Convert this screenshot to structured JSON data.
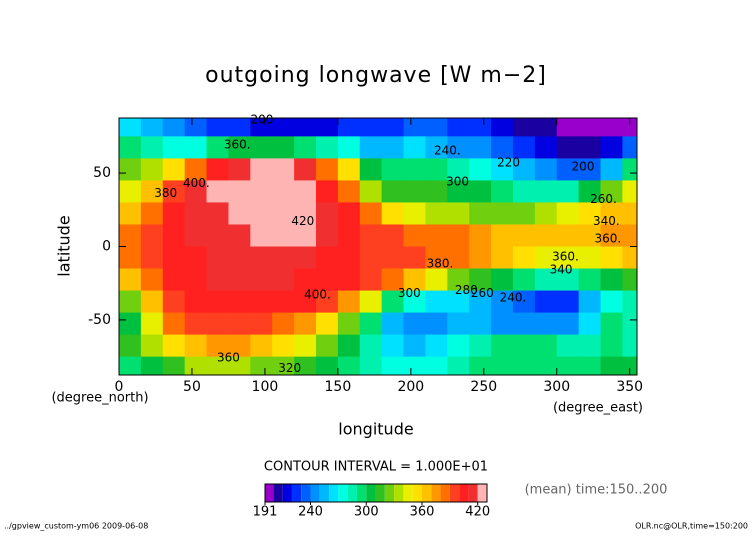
{
  "chart_data": {
    "type": "contour",
    "title": "outgoing longwave [W m−2]",
    "xlabel": "longitude",
    "ylabel": "latitude",
    "xunits": "(degree_east)",
    "yunits": "(degree_north)",
    "xlim": [
      0,
      355
    ],
    "ylim": [
      -87.5,
      87.5
    ],
    "xticks": [
      0,
      50,
      100,
      150,
      200,
      250,
      300,
      350
    ],
    "yticks": [
      -50,
      0,
      50
    ],
    "x": [
      7.5,
      22.5,
      37.5,
      52.5,
      67.5,
      82.5,
      97.5,
      112.5,
      127.5,
      142.5,
      157.5,
      172.5,
      187.5,
      202.5,
      217.5,
      232.5,
      247.5,
      262.5,
      277.5,
      292.5,
      307.5,
      322.5,
      337.5,
      352.5
    ],
    "y": [
      82.5,
      67.5,
      52.5,
      37.5,
      22.5,
      7.5,
      -7.5,
      -22.5,
      -37.5,
      -52.5,
      -67.5,
      -82.5
    ],
    "z": [
      [
        260,
        250,
        240,
        230,
        225,
        220,
        215,
        210,
        210,
        215,
        220,
        220,
        225,
        230,
        230,
        225,
        220,
        215,
        205,
        200,
        195,
        195,
        195,
        195
      ],
      [
        290,
        280,
        270,
        270,
        290,
        300,
        300,
        300,
        290,
        280,
        270,
        250,
        250,
        260,
        250,
        240,
        240,
        230,
        220,
        210,
        200,
        200,
        210,
        230
      ],
      [
        320,
        330,
        350,
        380,
        400,
        410,
        420,
        420,
        410,
        380,
        350,
        300,
        290,
        290,
        290,
        280,
        270,
        260,
        250,
        240,
        230,
        230,
        250,
        290
      ],
      [
        340,
        360,
        390,
        410,
        420,
        425,
        430,
        430,
        420,
        400,
        380,
        330,
        310,
        310,
        310,
        300,
        300,
        290,
        280,
        280,
        280,
        300,
        320,
        340
      ],
      [
        360,
        380,
        400,
        410,
        415,
        420,
        425,
        425,
        420,
        410,
        400,
        380,
        350,
        340,
        330,
        330,
        320,
        320,
        320,
        330,
        340,
        350,
        360,
        360
      ],
      [
        380,
        390,
        400,
        410,
        415,
        415,
        420,
        425,
        420,
        410,
        400,
        395,
        390,
        380,
        380,
        380,
        370,
        360,
        360,
        360,
        360,
        360,
        370,
        375
      ],
      [
        380,
        390,
        400,
        405,
        410,
        410,
        415,
        415,
        410,
        405,
        400,
        395,
        390,
        390,
        385,
        380,
        370,
        360,
        350,
        345,
        345,
        345,
        350,
        360
      ],
      [
        360,
        380,
        400,
        405,
        410,
        410,
        410,
        410,
        405,
        400,
        400,
        390,
        380,
        360,
        340,
        320,
        310,
        300,
        290,
        280,
        280,
        290,
        300,
        310
      ],
      [
        320,
        360,
        390,
        400,
        405,
        405,
        400,
        400,
        400,
        390,
        370,
        340,
        290,
        270,
        260,
        260,
        250,
        240,
        230,
        220,
        220,
        250,
        270,
        280
      ],
      [
        300,
        340,
        380,
        390,
        395,
        395,
        390,
        380,
        370,
        350,
        320,
        290,
        250,
        240,
        240,
        250,
        250,
        240,
        240,
        240,
        240,
        260,
        290,
        280
      ],
      [
        310,
        330,
        350,
        360,
        370,
        370,
        360,
        350,
        340,
        320,
        300,
        280,
        260,
        250,
        260,
        270,
        280,
        290,
        290,
        290,
        280,
        280,
        290,
        280
      ],
      [
        290,
        300,
        310,
        330,
        330,
        330,
        320,
        320,
        310,
        300,
        290,
        280,
        270,
        270,
        270,
        280,
        290,
        290,
        290,
        290,
        290,
        290,
        300,
        300
      ]
    ],
    "levels": [
      191,
      200,
      210,
      220,
      230,
      240,
      250,
      260,
      270,
      280,
      290,
      300,
      310,
      320,
      330,
      340,
      350,
      360,
      370,
      380,
      390,
      400,
      410,
      420,
      430
    ],
    "colors": [
      "#9900cc",
      "#1a00a0",
      "#0000e0",
      "#0030ff",
      "#0060ff",
      "#0090ff",
      "#00b8ff",
      "#00e0ff",
      "#00ffe0",
      "#00f0b0",
      "#00e070",
      "#00c040",
      "#30c020",
      "#70d010",
      "#b0e000",
      "#e8f000",
      "#ffe000",
      "#ffc000",
      "#ff9800",
      "#ff7000",
      "#ff4020",
      "#ff2020",
      "#f03030",
      "#ffb4b4"
    ],
    "colorbar_ticks": [
      191,
      240,
      300,
      360,
      420
    ],
    "contour_interval": "CONTOUR INTERVAL = 1.000E+01",
    "contour_labels": [
      {
        "label": "200",
        "x": 98,
        "y": 86
      },
      {
        "label": "360.",
        "x": 81,
        "y": 69
      },
      {
        "label": "240.",
        "x": 225,
        "y": 65
      },
      {
        "label": "220",
        "x": 267,
        "y": 57
      },
      {
        "label": "200",
        "x": 318,
        "y": 54
      },
      {
        "label": "300",
        "x": 232,
        "y": 44
      },
      {
        "label": "380",
        "x": 32,
        "y": 36
      },
      {
        "label": "400.",
        "x": 53,
        "y": 43
      },
      {
        "label": "260.",
        "x": 332,
        "y": 32
      },
      {
        "label": "340.",
        "x": 334,
        "y": 17
      },
      {
        "label": "360.",
        "x": 335,
        "y": 5
      },
      {
        "label": "420",
        "x": 126,
        "y": 17
      },
      {
        "label": "380.",
        "x": 220,
        "y": -12
      },
      {
        "label": "360.",
        "x": 306,
        "y": -7
      },
      {
        "label": "340",
        "x": 303,
        "y": -16
      },
      {
        "label": "400.",
        "x": 136,
        "y": -33
      },
      {
        "label": "300",
        "x": 199,
        "y": -32
      },
      {
        "label": "280",
        "x": 238,
        "y": -30
      },
      {
        "label": "260",
        "x": 249,
        "y": -32
      },
      {
        "label": "240.",
        "x": 270,
        "y": -35
      },
      {
        "label": "360",
        "x": 75,
        "y": -76
      },
      {
        "label": "320",
        "x": 117,
        "y": -83
      }
    ],
    "annotation": "(mean) time:150..200",
    "footer_left": "../gpview_custom-ym06  2009-06-08",
    "footer_right": "OLR.nc@OLR,time=150:200"
  }
}
